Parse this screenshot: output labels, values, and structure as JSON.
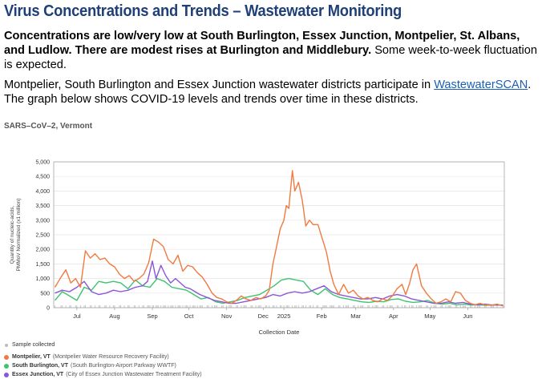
{
  "page": {
    "title": "Virus Concentrations and Trends – Wastewater Monitoring",
    "lead_bold": "Concentrations are low/very low at South Burlington, Essex Junction, Montpelier, St. Albans, and Ludlow. There are modest rises at Burlington and Middlebury.",
    "lead_rest": " Some week-to-week fluctuation is expected.",
    "para_start": "Montpelier, South Burlington and Essex Junction wastewater districts participate in ",
    "para_link": "WastewaterSCAN",
    "para_end": ". The graph below shows COVID-19 levels and trends over time in these districts."
  },
  "legend": {
    "sample": "Sample collected",
    "items": [
      {
        "name": "Montpelier, VT",
        "detail": "(Montpelier Water Resource Recovery Facility)",
        "color": "#f07a3f"
      },
      {
        "name": "South Burlington, VT",
        "detail": "(South Burlington-Airport Parkway WWTF)",
        "color": "#3cc46e"
      },
      {
        "name": "Essex Junction, VT",
        "detail": "(City of Essex Junction Wastewater Treatment Facility)",
        "color": "#8a55d6"
      }
    ]
  },
  "chart_data": {
    "type": "line",
    "title": "SARS–CoV–2, Vermont",
    "xlabel": "Collection Date",
    "ylabel": "Quantity of nucleic-acids, PMMoV Normalized (x1 million)",
    "ylim": [
      0,
      5000
    ],
    "yticks": [
      "0",
      "500",
      "1,000",
      "1,500",
      "2,000",
      "2,500",
      "3,000",
      "3,500",
      "4,000",
      "4,500",
      "5,000"
    ],
    "xlim": [
      "2024-06-26",
      "2025-07-01"
    ],
    "xticks": [
      {
        "label": "Jul",
        "date": "2024-07-15"
      },
      {
        "label": "Aug",
        "date": "2024-08-15"
      },
      {
        "label": "Sep",
        "date": "2024-09-15"
      },
      {
        "label": "Oct",
        "date": "2024-10-15"
      },
      {
        "label": "Nov",
        "date": "2024-11-15"
      },
      {
        "label": "Dec",
        "date": "2024-12-15"
      },
      {
        "label": "2025",
        "date": "2025-01-01"
      },
      {
        "label": "Feb",
        "date": "2025-02-01"
      },
      {
        "label": "Mar",
        "date": "2025-03-01"
      },
      {
        "label": "Apr",
        "date": "2025-04-01"
      },
      {
        "label": "May",
        "date": "2025-05-01"
      },
      {
        "label": "Jun",
        "date": "2025-06-01"
      }
    ],
    "grid": true,
    "legend_position": "bottom-left",
    "series": [
      {
        "name": "Montpelier, VT",
        "color": "#f07a3f",
        "points": [
          [
            "2024-06-27",
            700
          ],
          [
            "2024-07-02",
            1050
          ],
          [
            "2024-07-06",
            1300
          ],
          [
            "2024-07-10",
            850
          ],
          [
            "2024-07-14",
            1000
          ],
          [
            "2024-07-18",
            700
          ],
          [
            "2024-07-22",
            1950
          ],
          [
            "2024-07-26",
            1700
          ],
          [
            "2024-07-30",
            1850
          ],
          [
            "2024-08-03",
            1650
          ],
          [
            "2024-08-07",
            1700
          ],
          [
            "2024-08-11",
            1500
          ],
          [
            "2024-08-15",
            1400
          ],
          [
            "2024-08-19",
            1150
          ],
          [
            "2024-08-23",
            1000
          ],
          [
            "2024-08-27",
            1100
          ],
          [
            "2024-08-31",
            900
          ],
          [
            "2024-09-04",
            1000
          ],
          [
            "2024-09-08",
            1150
          ],
          [
            "2024-09-12",
            1550
          ],
          [
            "2024-09-16",
            2350
          ],
          [
            "2024-09-20",
            2250
          ],
          [
            "2024-09-24",
            2100
          ],
          [
            "2024-09-28",
            1650
          ],
          [
            "2024-10-02",
            1500
          ],
          [
            "2024-10-06",
            1800
          ],
          [
            "2024-10-10",
            1250
          ],
          [
            "2024-10-14",
            1450
          ],
          [
            "2024-10-18",
            1400
          ],
          [
            "2024-10-22",
            1200
          ],
          [
            "2024-10-26",
            1050
          ],
          [
            "2024-10-30",
            800
          ],
          [
            "2024-11-03",
            500
          ],
          [
            "2024-11-07",
            350
          ],
          [
            "2024-11-11",
            300
          ],
          [
            "2024-11-15",
            200
          ],
          [
            "2024-11-19",
            150
          ],
          [
            "2024-11-23",
            250
          ],
          [
            "2024-11-27",
            400
          ],
          [
            "2024-12-01",
            300
          ],
          [
            "2024-12-05",
            250
          ],
          [
            "2024-12-09",
            350
          ],
          [
            "2024-12-13",
            300
          ],
          [
            "2024-12-17",
            400
          ],
          [
            "2024-12-20",
            600
          ],
          [
            "2024-12-23",
            1500
          ],
          [
            "2024-12-26",
            2100
          ],
          [
            "2024-12-29",
            2700
          ],
          [
            "2025-01-01",
            3000
          ],
          [
            "2025-01-03",
            3500
          ],
          [
            "2025-01-05",
            3400
          ],
          [
            "2025-01-08",
            4700
          ],
          [
            "2025-01-10",
            4000
          ],
          [
            "2025-01-13",
            4300
          ],
          [
            "2025-01-16",
            3700
          ],
          [
            "2025-01-19",
            2800
          ],
          [
            "2025-01-22",
            3000
          ],
          [
            "2025-01-25",
            2850
          ],
          [
            "2025-01-29",
            2850
          ],
          [
            "2025-02-02",
            2300
          ],
          [
            "2025-02-05",
            1900
          ],
          [
            "2025-02-08",
            1250
          ],
          [
            "2025-02-11",
            800
          ],
          [
            "2025-02-15",
            450
          ],
          [
            "2025-02-19",
            800
          ],
          [
            "2025-02-23",
            500
          ],
          [
            "2025-02-27",
            600
          ],
          [
            "2025-03-03",
            400
          ],
          [
            "2025-03-07",
            300
          ],
          [
            "2025-03-11",
            350
          ],
          [
            "2025-03-15",
            250
          ],
          [
            "2025-03-19",
            200
          ],
          [
            "2025-03-23",
            300
          ],
          [
            "2025-03-27",
            250
          ],
          [
            "2025-03-31",
            400
          ],
          [
            "2025-04-04",
            650
          ],
          [
            "2025-04-08",
            800
          ],
          [
            "2025-04-11",
            450
          ],
          [
            "2025-04-14",
            800
          ],
          [
            "2025-04-17",
            1300
          ],
          [
            "2025-04-20",
            1500
          ],
          [
            "2025-04-24",
            750
          ],
          [
            "2025-04-28",
            500
          ],
          [
            "2025-05-02",
            300
          ],
          [
            "2025-05-06",
            150
          ],
          [
            "2025-05-10",
            200
          ],
          [
            "2025-05-14",
            300
          ],
          [
            "2025-05-18",
            200
          ],
          [
            "2025-05-22",
            550
          ],
          [
            "2025-05-26",
            500
          ],
          [
            "2025-05-30",
            250
          ],
          [
            "2025-06-03",
            150
          ],
          [
            "2025-06-07",
            100
          ],
          [
            "2025-06-11",
            150
          ],
          [
            "2025-06-15",
            100
          ],
          [
            "2025-06-20",
            80
          ],
          [
            "2025-06-25",
            120
          ],
          [
            "2025-06-30",
            60
          ]
        ]
      },
      {
        "name": "South Burlington, VT",
        "color": "#3cc46e",
        "points": [
          [
            "2024-06-27",
            250
          ],
          [
            "2024-07-03",
            550
          ],
          [
            "2024-07-09",
            400
          ],
          [
            "2024-07-15",
            250
          ],
          [
            "2024-07-21",
            700
          ],
          [
            "2024-07-27",
            600
          ],
          [
            "2024-08-02",
            900
          ],
          [
            "2024-08-08",
            850
          ],
          [
            "2024-08-14",
            900
          ],
          [
            "2024-08-20",
            850
          ],
          [
            "2024-08-26",
            650
          ],
          [
            "2024-09-01",
            950
          ],
          [
            "2024-09-07",
            750
          ],
          [
            "2024-09-13",
            700
          ],
          [
            "2024-09-19",
            1000
          ],
          [
            "2024-09-25",
            900
          ],
          [
            "2024-10-01",
            700
          ],
          [
            "2024-10-07",
            650
          ],
          [
            "2024-10-13",
            600
          ],
          [
            "2024-10-19",
            450
          ],
          [
            "2024-10-25",
            300
          ],
          [
            "2024-10-31",
            350
          ],
          [
            "2024-11-06",
            200
          ],
          [
            "2024-11-12",
            150
          ],
          [
            "2024-11-18",
            200
          ],
          [
            "2024-11-24",
            250
          ],
          [
            "2024-11-30",
            350
          ],
          [
            "2024-12-06",
            400
          ],
          [
            "2024-12-12",
            450
          ],
          [
            "2024-12-18",
            600
          ],
          [
            "2024-12-24",
            750
          ],
          [
            "2024-12-30",
            950
          ],
          [
            "2025-01-05",
            1000
          ],
          [
            "2025-01-11",
            950
          ],
          [
            "2025-01-17",
            900
          ],
          [
            "2025-01-23",
            600
          ],
          [
            "2025-01-29",
            450
          ],
          [
            "2025-02-04",
            650
          ],
          [
            "2025-02-10",
            450
          ],
          [
            "2025-02-16",
            350
          ],
          [
            "2025-02-22",
            300
          ],
          [
            "2025-02-28",
            250
          ],
          [
            "2025-03-06",
            200
          ],
          [
            "2025-03-12",
            180
          ],
          [
            "2025-03-18",
            220
          ],
          [
            "2025-03-24",
            200
          ],
          [
            "2025-03-30",
            280
          ],
          [
            "2025-04-05",
            300
          ],
          [
            "2025-04-11",
            220
          ],
          [
            "2025-04-17",
            180
          ],
          [
            "2025-04-23",
            200
          ],
          [
            "2025-04-29",
            250
          ],
          [
            "2025-05-05",
            150
          ],
          [
            "2025-05-11",
            120
          ],
          [
            "2025-05-17",
            150
          ],
          [
            "2025-05-23",
            100
          ],
          [
            "2025-05-29",
            120
          ],
          [
            "2025-06-04",
            90
          ],
          [
            "2025-06-10",
            100
          ],
          [
            "2025-06-16",
            80
          ],
          [
            "2025-06-22",
            100
          ],
          [
            "2025-06-30",
            80
          ]
        ]
      },
      {
        "name": "Essex Junction, VT",
        "color": "#8a55d6",
        "points": [
          [
            "2024-06-27",
            500
          ],
          [
            "2024-07-03",
            600
          ],
          [
            "2024-07-09",
            550
          ],
          [
            "2024-07-15",
            700
          ],
          [
            "2024-07-21",
            900
          ],
          [
            "2024-07-27",
            550
          ],
          [
            "2024-08-02",
            450
          ],
          [
            "2024-08-08",
            500
          ],
          [
            "2024-08-14",
            600
          ],
          [
            "2024-08-20",
            550
          ],
          [
            "2024-08-26",
            600
          ],
          [
            "2024-09-01",
            700
          ],
          [
            "2024-09-07",
            750
          ],
          [
            "2024-09-11",
            900
          ],
          [
            "2024-09-15",
            1600
          ],
          [
            "2024-09-18",
            1000
          ],
          [
            "2024-09-22",
            1450
          ],
          [
            "2024-09-26",
            1100
          ],
          [
            "2024-09-30",
            850
          ],
          [
            "2024-10-04",
            1000
          ],
          [
            "2024-10-08",
            850
          ],
          [
            "2024-10-12",
            700
          ],
          [
            "2024-10-16",
            650
          ],
          [
            "2024-10-20",
            550
          ],
          [
            "2024-10-24",
            450
          ],
          [
            "2024-10-30",
            350
          ],
          [
            "2024-11-05",
            250
          ],
          [
            "2024-11-11",
            200
          ],
          [
            "2024-11-17",
            150
          ],
          [
            "2024-11-23",
            150
          ],
          [
            "2024-11-29",
            200
          ],
          [
            "2024-12-05",
            250
          ],
          [
            "2024-12-11",
            300
          ],
          [
            "2024-12-17",
            350
          ],
          [
            "2024-12-23",
            450
          ],
          [
            "2024-12-29",
            400
          ],
          [
            "2025-01-04",
            500
          ],
          [
            "2025-01-10",
            550
          ],
          [
            "2025-01-16",
            500
          ],
          [
            "2025-01-22",
            550
          ],
          [
            "2025-01-28",
            650
          ],
          [
            "2025-02-03",
            750
          ],
          [
            "2025-02-09",
            550
          ],
          [
            "2025-02-15",
            450
          ],
          [
            "2025-02-21",
            400
          ],
          [
            "2025-02-27",
            350
          ],
          [
            "2025-03-05",
            300
          ],
          [
            "2025-03-11",
            300
          ],
          [
            "2025-03-17",
            350
          ],
          [
            "2025-03-23",
            300
          ],
          [
            "2025-03-29",
            400
          ],
          [
            "2025-04-04",
            450
          ],
          [
            "2025-04-10",
            400
          ],
          [
            "2025-04-16",
            300
          ],
          [
            "2025-04-22",
            250
          ],
          [
            "2025-04-28",
            200
          ],
          [
            "2025-05-04",
            150
          ],
          [
            "2025-05-10",
            150
          ],
          [
            "2025-05-16",
            200
          ],
          [
            "2025-05-22",
            150
          ],
          [
            "2025-05-28",
            180
          ],
          [
            "2025-06-03",
            120
          ],
          [
            "2025-06-09",
            100
          ],
          [
            "2025-06-15",
            120
          ],
          [
            "2025-06-21",
            90
          ],
          [
            "2025-06-30",
            90
          ]
        ]
      }
    ]
  }
}
